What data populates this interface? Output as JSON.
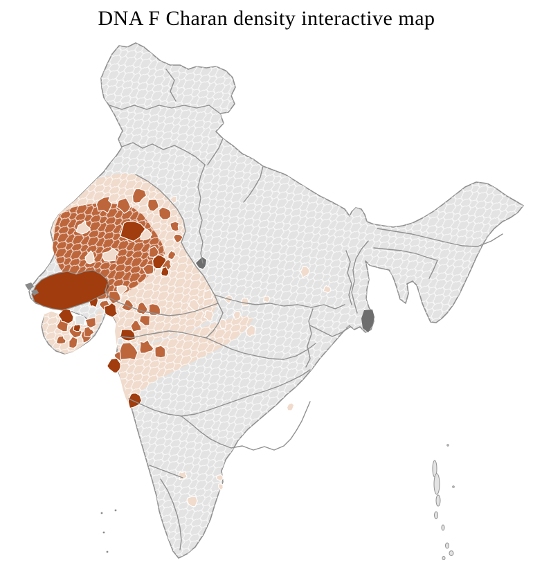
{
  "title": "DNA F Charan density interactive map",
  "map": {
    "region_label": "india-district-choropleth",
    "palette": {
      "background": "#ffffff",
      "no_data": "#e3e3e3",
      "low": "#f0dbcc",
      "medium": "#bd663c",
      "high": "#a03c0d",
      "special": "#6e6e6e",
      "islet": "#8a8a8a",
      "district_border": "#ffffff",
      "state_border": "#909090"
    }
  }
}
